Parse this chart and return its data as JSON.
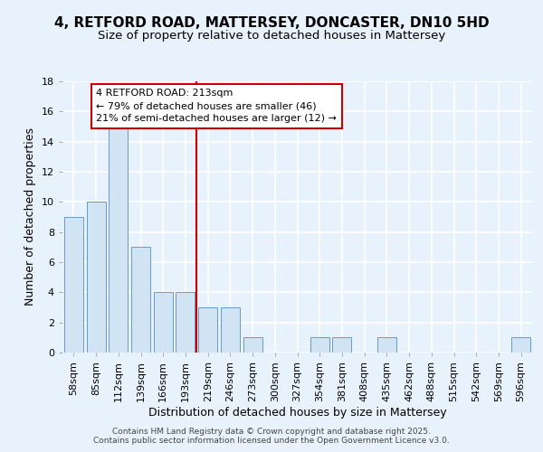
{
  "title_line1": "4, RETFORD ROAD, MATTERSEY, DONCASTER, DN10 5HD",
  "title_line2": "Size of property relative to detached houses in Mattersey",
  "xlabel": "Distribution of detached houses by size in Mattersey",
  "ylabel": "Number of detached properties",
  "categories": [
    "58sqm",
    "85sqm",
    "112sqm",
    "139sqm",
    "166sqm",
    "193sqm",
    "219sqm",
    "246sqm",
    "273sqm",
    "300sqm",
    "327sqm",
    "354sqm",
    "381sqm",
    "408sqm",
    "435sqm",
    "462sqm",
    "488sqm",
    "515sqm",
    "542sqm",
    "569sqm",
    "596sqm"
  ],
  "values": [
    9,
    10,
    15,
    7,
    4,
    4,
    3,
    3,
    1,
    0,
    0,
    1,
    1,
    0,
    1,
    0,
    0,
    0,
    0,
    0,
    1
  ],
  "bar_color": "#d0e4f4",
  "bar_edge_color": "#6699cc",
  "vline_index": 6,
  "vline_color": "#cc0000",
  "annotation_text": "4 RETFORD ROAD: 213sqm\n← 79% of detached houses are smaller (46)\n21% of semi-detached houses are larger (12) →",
  "annotation_box_facecolor": "#ffffff",
  "annotation_box_edgecolor": "#cc0000",
  "annotation_lw": 1.5,
  "ylim": [
    0,
    18
  ],
  "yticks": [
    0,
    2,
    4,
    6,
    8,
    10,
    12,
    14,
    16,
    18
  ],
  "footer_text": "Contains HM Land Registry data © Crown copyright and database right 2025.\nContains public sector information licensed under the Open Government Licence v3.0.",
  "bg_color": "#e8f2fc",
  "grid_color": "#ffffff",
  "title_fontsize": 11,
  "subtitle_fontsize": 9.5,
  "axis_label_fontsize": 9,
  "tick_fontsize": 8,
  "annotation_fontsize": 8,
  "footer_fontsize": 6.5
}
